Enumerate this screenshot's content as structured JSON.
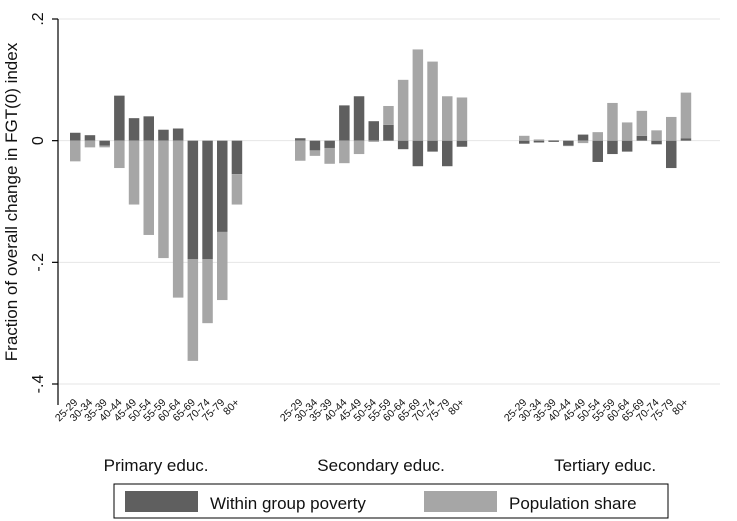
{
  "chart_data": {
    "type": "bar",
    "stacked": true,
    "ylabel": "Fraction of overall change in FGT(0) index",
    "ylim": [
      -0.4,
      0.2
    ],
    "yticks": [
      {
        "value": 0.2,
        "label": ".2"
      },
      {
        "value": 0,
        "label": "0"
      },
      {
        "value": -0.2,
        "label": "-.2"
      },
      {
        "value": -0.4,
        "label": "-.4"
      }
    ],
    "grid": true,
    "legend_position": "bottom",
    "age_groups": [
      "25-29",
      "30-34",
      "35-39",
      "40-44",
      "45-49",
      "50-54",
      "55-59",
      "60-64",
      "65-69",
      "70-74",
      "75-79",
      "80+"
    ],
    "groups": [
      {
        "name": "Primary educ.",
        "series": [
          {
            "name": "Within group poverty",
            "values": [
              0.013,
              0.009,
              -0.008,
              0.074,
              0.037,
              0.04,
              0.018,
              0.02,
              -0.195,
              -0.195,
              -0.15,
              -0.055
            ]
          },
          {
            "name": "Population share",
            "values": [
              -0.034,
              -0.011,
              -0.003,
              -0.045,
              -0.105,
              -0.155,
              -0.193,
              -0.258,
              -0.167,
              -0.105,
              -0.112,
              -0.05
            ]
          }
        ]
      },
      {
        "name": "Secondary educ.",
        "series": [
          {
            "name": "Within group poverty",
            "values": [
              0.004,
              -0.016,
              -0.012,
              0.058,
              0.073,
              0.032,
              0.026,
              -0.014,
              -0.042,
              -0.018,
              -0.042,
              -0.01
            ]
          },
          {
            "name": "Population share",
            "values": [
              -0.033,
              -0.009,
              -0.026,
              -0.037,
              -0.022,
              -0.002,
              0.031,
              0.1,
              0.15,
              0.13,
              0.073,
              0.071
            ]
          }
        ]
      },
      {
        "name": "Tertiary educ.",
        "series": [
          {
            "name": "Within group poverty",
            "values": [
              -0.005,
              -0.003,
              -0.002,
              -0.008,
              0.01,
              -0.035,
              -0.022,
              -0.018,
              0.008,
              -0.006,
              -0.045,
              0.004
            ]
          },
          {
            "name": "Population share",
            "values": [
              0.008,
              0.002,
              0.001,
              -0.001,
              -0.004,
              0.014,
              0.062,
              0.03,
              0.041,
              0.017,
              0.039,
              0.075
            ]
          }
        ]
      }
    ],
    "legend": [
      {
        "name": "Within group poverty",
        "color": "#5f5f5f"
      },
      {
        "name": "Population share",
        "color": "#a6a6a6"
      }
    ]
  }
}
